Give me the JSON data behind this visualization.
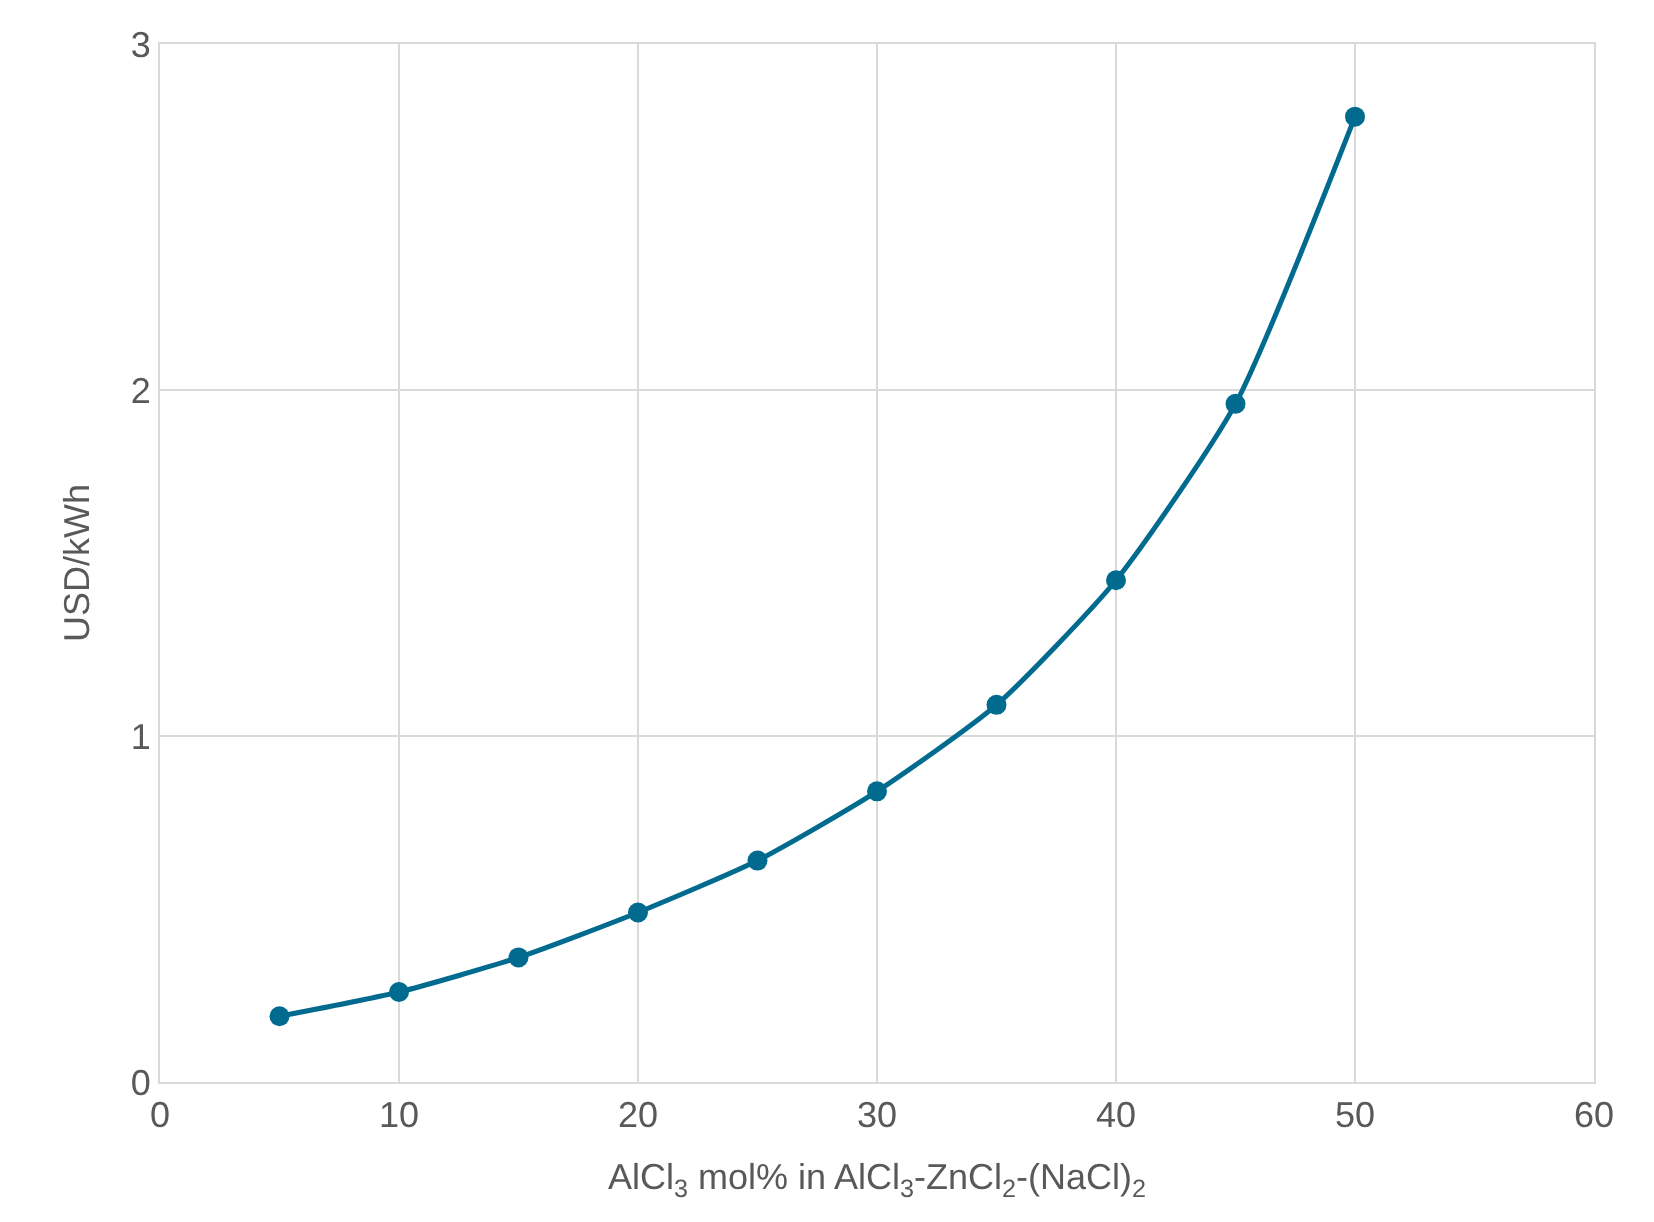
{
  "chart_data": {
    "type": "line",
    "xlabel": "AlCl$_{3}$ mol% in AlCl$_{3}$-ZnCl$_{2}$-(NaCl)$_{2}$",
    "ylabel": "USD/kWh",
    "x": [
      5,
      10,
      15,
      20,
      25,
      30,
      35,
      40,
      45,
      50
    ],
    "series": [
      {
        "color": "#006b8f",
        "values": [
          0.19,
          0.26,
          0.36,
          0.49,
          0.64,
          0.84,
          1.09,
          1.45,
          1.96,
          2.79
        ]
      }
    ],
    "xlim": [
      0,
      60
    ],
    "xticks": [
      0,
      10,
      20,
      30,
      40,
      50,
      60
    ],
    "ylim": [
      0,
      3
    ],
    "yticks": [
      0,
      1,
      2,
      3
    ],
    "grid": true,
    "marker": "circle",
    "line_style": "solid"
  }
}
